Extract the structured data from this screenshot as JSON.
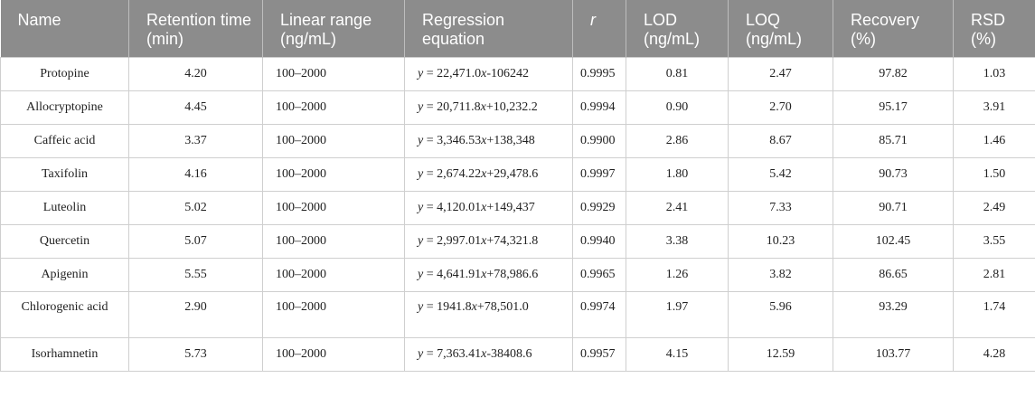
{
  "table": {
    "headers": [
      "Name",
      "Retention time (min)",
      "Linear range (ng/mL)",
      "Regression equation",
      "r",
      "LOD (ng/mL)",
      "LOQ (ng/mL)",
      "Recovery (%)",
      "RSD (%)"
    ],
    "rows": [
      {
        "name": "Protopine",
        "rt": "4.20",
        "range": "100–2000",
        "eq": "= 22,471.0x-106242",
        "r": "0.9995",
        "lod": "0.81",
        "loq": "2.47",
        "recovery": "97.82",
        "rsd": "1.03"
      },
      {
        "name": "Allocryptopine",
        "rt": "4.45",
        "range": "100–2000",
        "eq": "= 20,711.8x+10,232.2",
        "r": "0.9994",
        "lod": "0.90",
        "loq": "2.70",
        "recovery": "95.17",
        "rsd": "3.91"
      },
      {
        "name": "Caffeic acid",
        "rt": "3.37",
        "range": "100–2000",
        "eq": "= 3,346.53x+138,348",
        "r": "0.9900",
        "lod": "2.86",
        "loq": "8.67",
        "recovery": "85.71",
        "rsd": "1.46"
      },
      {
        "name": "Taxifolin",
        "rt": "4.16",
        "range": "100–2000",
        "eq": "= 2,674.22x+29,478.6",
        "r": "0.9997",
        "lod": "1.80",
        "loq": "5.42",
        "recovery": "90.73",
        "rsd": "1.50"
      },
      {
        "name": "Luteolin",
        "rt": "5.02",
        "range": "100–2000",
        "eq": "= 4,120.01x+149,437",
        "r": "0.9929",
        "lod": "2.41",
        "loq": "7.33",
        "recovery": "90.71",
        "rsd": "2.49"
      },
      {
        "name": "Quercetin",
        "rt": "5.07",
        "range": "100–2000",
        "eq": "= 2,997.01x+74,321.8",
        "r": "0.9940",
        "lod": "3.38",
        "loq": "10.23",
        "recovery": "102.45",
        "rsd": "3.55"
      },
      {
        "name": "Apigenin",
        "rt": "5.55",
        "range": "100–2000",
        "eq": "= 4,641.91x+78,986.6",
        "r": "0.9965",
        "lod": "1.26",
        "loq": "3.82",
        "recovery": "86.65",
        "rsd": "2.81"
      },
      {
        "name": "Chlorogenic acid",
        "rt": "2.90",
        "range": "100–2000",
        "eq": "= 1941.8x+78,501.0",
        "r": "0.9974",
        "lod": "1.97",
        "loq": "5.96",
        "recovery": "93.29",
        "rsd": "1.74"
      },
      {
        "name": "Isorhamnetin",
        "rt": "5.73",
        "range": "100–2000",
        "eq": "= 7,363.41x-38408.6",
        "r": "0.9957",
        "lod": "4.15",
        "loq": "12.59",
        "recovery": "103.77",
        "rsd": "4.28"
      }
    ],
    "eq_variable": "y"
  }
}
